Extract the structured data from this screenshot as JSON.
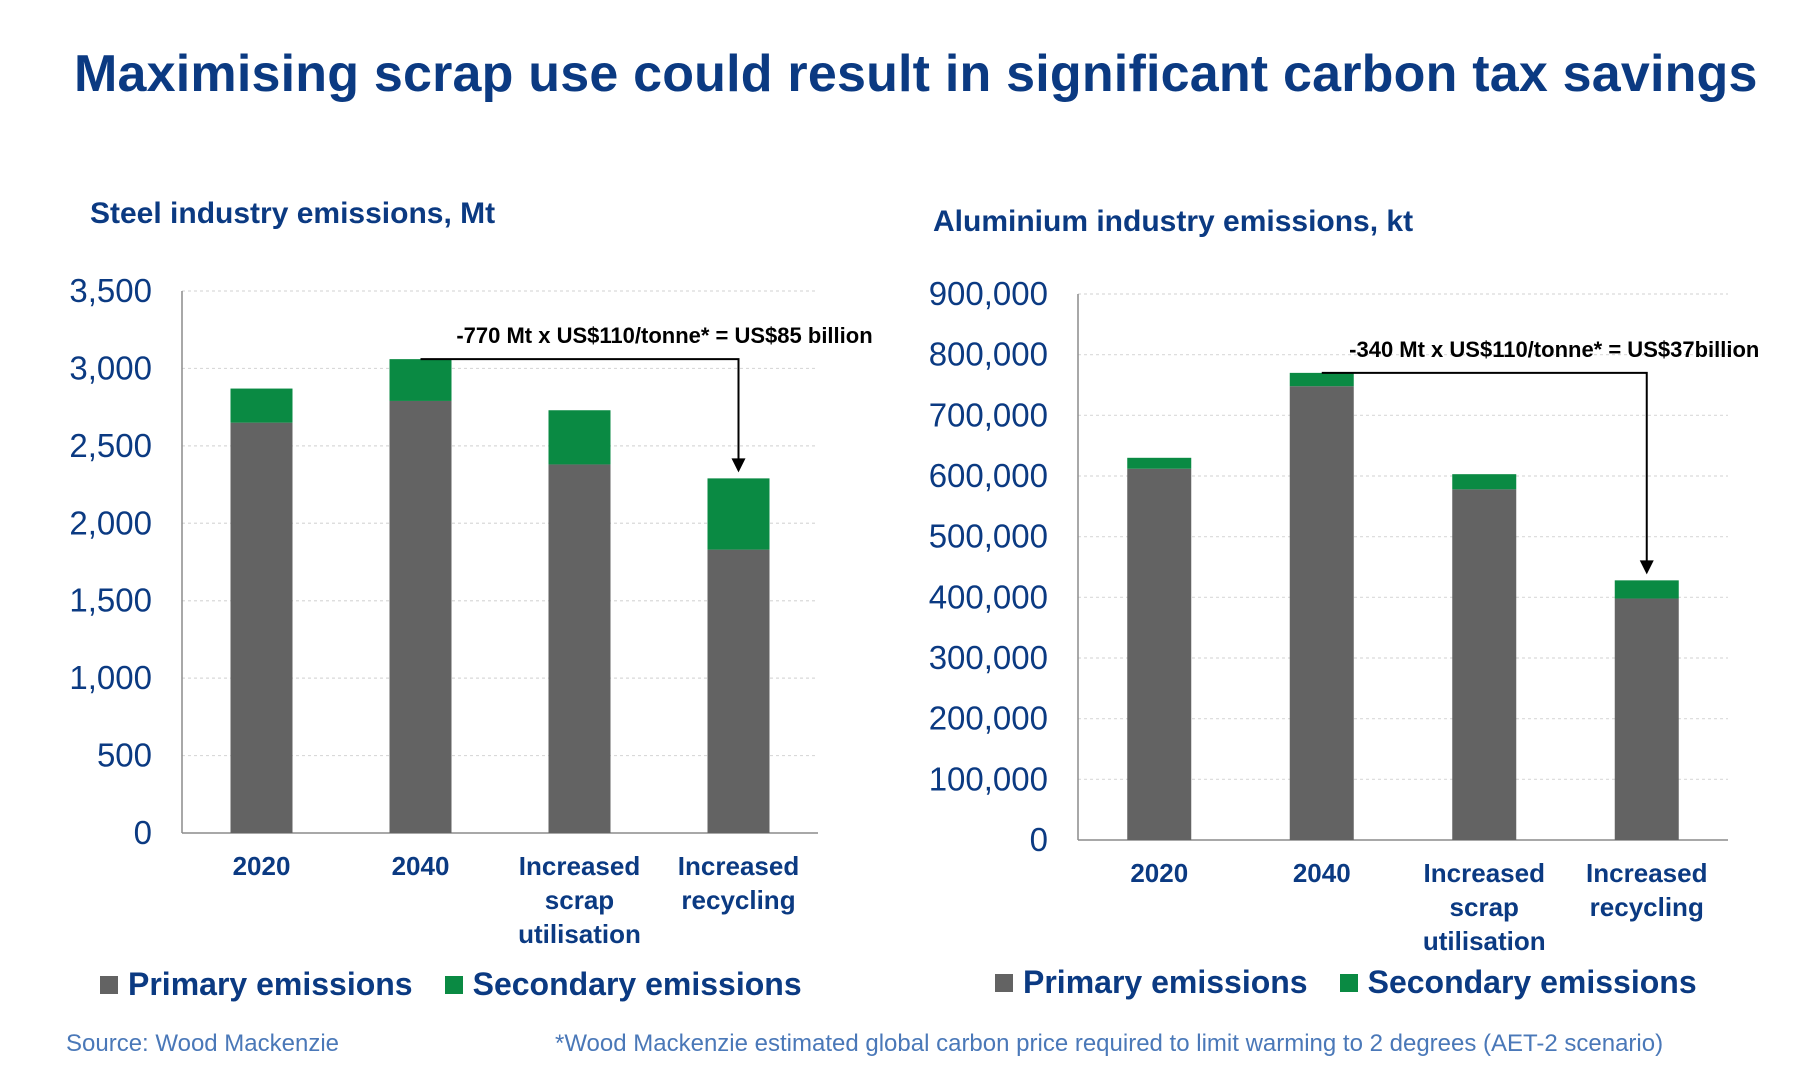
{
  "title": "Maximising scrap use could result in significant carbon tax savings",
  "colors": {
    "primary": "#636363",
    "secondary": "#0a8a43",
    "text": "#0b3a82",
    "grid": "#d9d9d9"
  },
  "chart_data": [
    {
      "type": "bar",
      "stacked": true,
      "title": "Steel industry emissions, Mt",
      "categories": [
        [
          "2020"
        ],
        [
          "2040"
        ],
        [
          "Increased",
          "scrap",
          "utilisation"
        ],
        [
          "Increased",
          "recycling"
        ]
      ],
      "series": [
        {
          "name": "Primary emissions",
          "values": [
            2650,
            2790,
            2380,
            1830
          ]
        },
        {
          "name": "Secondary emissions",
          "values": [
            220,
            270,
            350,
            460
          ]
        }
      ],
      "ylim": [
        0,
        3500
      ],
      "yticks": [
        0,
        500,
        1000,
        1500,
        2000,
        2500,
        3000,
        3500
      ],
      "ytick_labels": [
        "0",
        "500",
        "1,000",
        "1,500",
        "2,000",
        "2,500",
        "3,000",
        "3,500"
      ],
      "annotation": {
        "text": "-770 Mt  x US$110/tonne* = US$85 billion",
        "from_category": 1,
        "to_category": 3
      },
      "legend": "bottom"
    },
    {
      "type": "bar",
      "stacked": true,
      "title": "Aluminium industry emissions, kt",
      "categories": [
        [
          "2020"
        ],
        [
          "2040"
        ],
        [
          "Increased",
          "scrap",
          "utilisation"
        ],
        [
          "Increased",
          "recycling"
        ]
      ],
      "series": [
        {
          "name": "Primary emissions",
          "values": [
            612000,
            748000,
            578000,
            398000
          ]
        },
        {
          "name": "Secondary emissions",
          "values": [
            18000,
            22000,
            25000,
            30000
          ]
        }
      ],
      "ylim": [
        0,
        900000
      ],
      "yticks": [
        0,
        100000,
        200000,
        300000,
        400000,
        500000,
        600000,
        700000,
        800000,
        900000
      ],
      "ytick_labels": [
        "0",
        "100,000",
        "200,000",
        "300,000",
        "400,000",
        "500,000",
        "600,000",
        "700,000",
        "800,000",
        "900,000"
      ],
      "annotation": {
        "text": "-340 Mt  x US$110/tonne* = US$37billion",
        "from_category": 1,
        "to_category": 3
      },
      "legend": "bottom"
    }
  ],
  "legend": {
    "primary_label": "Primary emissions",
    "secondary_label": "Secondary emissions"
  },
  "footer": {
    "source": "Source: Wood Mackenzie",
    "footnote": "*Wood Mackenzie estimated global carbon price required to limit warming to 2 degrees (AET-2 scenario)"
  }
}
